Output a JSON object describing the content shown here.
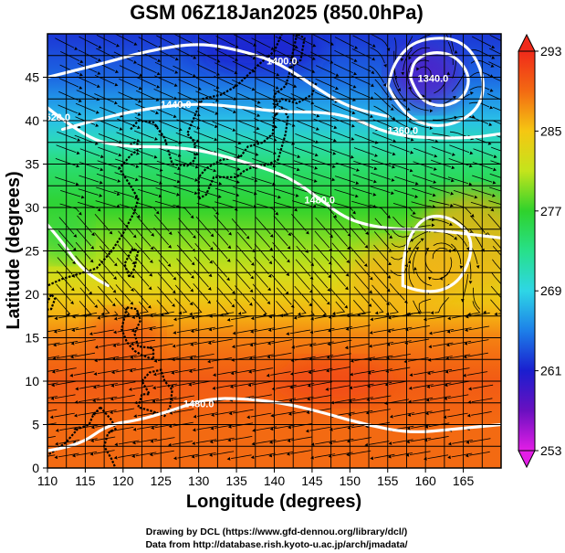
{
  "chart_data": {
    "type": "heatmap",
    "title": "GSM 06Z18Jan2025 (850.0hPa)",
    "xlabel": "Longitude (degrees)",
    "ylabel": "Latitude  (degrees)",
    "xlim": [
      110,
      170
    ],
    "ylim": [
      0,
      50
    ],
    "x_ticks": [
      "110",
      "115",
      "120",
      "125",
      "130",
      "135",
      "140",
      "145",
      "150",
      "155",
      "160",
      "165"
    ],
    "y_ticks": [
      "0",
      "5",
      "10",
      "15",
      "20",
      "25",
      "30",
      "35",
      "40",
      "45"
    ],
    "grid": true,
    "colorbar": {
      "min": 253,
      "max": 293,
      "labels": [
        "293",
        "285",
        "277",
        "269",
        "261",
        "253"
      ],
      "stops": [
        {
          "v": 253,
          "c": "#e31ee6"
        },
        {
          "v": 257,
          "c": "#6a10c0"
        },
        {
          "v": 261,
          "c": "#1a1ecf"
        },
        {
          "v": 265,
          "c": "#1d7fe8"
        },
        {
          "v": 269,
          "c": "#2ed6e6"
        },
        {
          "v": 273,
          "c": "#27e08a"
        },
        {
          "v": 277,
          "c": "#2fd22c"
        },
        {
          "v": 281,
          "c": "#c4e41c"
        },
        {
          "v": 285,
          "c": "#f5c712"
        },
        {
          "v": 289,
          "c": "#f36a12"
        },
        {
          "v": 293,
          "c": "#f02a1a"
        }
      ]
    },
    "temperature_field_lat_profile": [
      {
        "lat": 50,
        "t": 262
      },
      {
        "lat": 45,
        "t": 264
      },
      {
        "lat": 40,
        "t": 268
      },
      {
        "lat": 35,
        "t": 274
      },
      {
        "lat": 30,
        "t": 277
      },
      {
        "lat": 25,
        "t": 280
      },
      {
        "lat": 20,
        "t": 284
      },
      {
        "lat": 15,
        "t": 288
      },
      {
        "lat": 10,
        "t": 290
      },
      {
        "lat": 5,
        "t": 289
      },
      {
        "lat": 0,
        "t": 289
      }
    ],
    "contour_labels": [
      {
        "text": "1400.0",
        "lon": 141,
        "lat": 46.5
      },
      {
        "text": "1440.0",
        "lon": 127,
        "lat": 41.5
      },
      {
        "text": "1480.0",
        "lon": 146,
        "lat": 30.5
      },
      {
        "text": "1360.0",
        "lon": 157,
        "lat": 38.5
      },
      {
        "text": "1340.0",
        "lon": 161,
        "lat": 44.5
      },
      {
        "text": "1520.0",
        "lon": 111,
        "lat": 40
      },
      {
        "text": "1480.0",
        "lon": 130,
        "lat": 7
      }
    ],
    "contours": [
      {
        "lonlat": [
          [
            110,
            45
          ],
          [
            117,
            46.5
          ],
          [
            123,
            48
          ],
          [
            130,
            49
          ],
          [
            136,
            48
          ],
          [
            141,
            46.5
          ],
          [
            146,
            43.5
          ],
          [
            150,
            41.5
          ],
          [
            155,
            40.5
          ]
        ]
      },
      {
        "lonlat": [
          [
            112,
            39
          ],
          [
            118,
            40.5
          ],
          [
            124,
            41.5
          ],
          [
            130,
            42
          ],
          [
            136,
            41.5
          ],
          [
            141,
            41
          ],
          [
            146,
            41
          ],
          [
            150,
            40.5
          ],
          [
            155,
            38.5
          ],
          [
            160,
            38
          ],
          [
            166,
            38
          ],
          [
            170,
            38.5
          ]
        ]
      },
      {
        "lonlat": [
          [
            110,
            41.5
          ],
          [
            115,
            38
          ],
          [
            120,
            37
          ],
          [
            126,
            37
          ],
          [
            131,
            36.5
          ],
          [
            137,
            35
          ],
          [
            142,
            33.5
          ],
          [
            146,
            31
          ],
          [
            149,
            29
          ],
          [
            152,
            28
          ],
          [
            156,
            27.5
          ],
          [
            160,
            27.5
          ],
          [
            165,
            27
          ],
          [
            170,
            26.5
          ]
        ]
      },
      {
        "lonlat": [
          [
            110,
            28
          ],
          [
            112,
            26
          ],
          [
            114,
            23.5
          ],
          [
            116,
            22
          ],
          [
            118,
            21
          ]
        ]
      },
      {
        "lonlat": [
          [
            110,
            2
          ],
          [
            114,
            2.5
          ],
          [
            118,
            5
          ],
          [
            122,
            5.5
          ],
          [
            126,
            6.5
          ],
          [
            131,
            8
          ],
          [
            136,
            8
          ],
          [
            141,
            7.5
          ],
          [
            146,
            6.5
          ],
          [
            152,
            5
          ],
          [
            158,
            4
          ],
          [
            164,
            4.5
          ],
          [
            170,
            5
          ]
        ]
      },
      {
        "lonlat": [
          [
            157,
            21
          ],
          [
            160,
            20
          ],
          [
            164,
            21
          ],
          [
            166,
            24
          ],
          [
            166,
            27
          ],
          [
            163,
            29
          ],
          [
            160,
            29
          ],
          [
            158,
            27
          ],
          [
            157,
            24
          ],
          [
            157,
            21
          ]
        ]
      },
      {
        "lonlat": [
          [
            158,
            45
          ],
          [
            159,
            42.5
          ],
          [
            162,
            41.5
          ],
          [
            165,
            42.5
          ],
          [
            166,
            45
          ],
          [
            164,
            47.5
          ],
          [
            161,
            48
          ],
          [
            158.5,
            47
          ],
          [
            158,
            45
          ]
        ]
      },
      {
        "lonlat": [
          [
            155,
            44
          ],
          [
            157,
            40.5
          ],
          [
            162,
            39
          ],
          [
            167,
            41
          ],
          [
            168,
            45
          ],
          [
            165,
            49.5
          ],
          [
            159,
            49.5
          ],
          [
            156,
            47
          ],
          [
            155,
            44
          ]
        ]
      }
    ],
    "coastline": [
      {
        "lonlat": [
          [
            121,
            39
          ],
          [
            122,
            40
          ],
          [
            124,
            39.8
          ],
          [
            125.5,
            38
          ],
          [
            126.5,
            35
          ],
          [
            128.5,
            34.8
          ],
          [
            129.5,
            35.5
          ],
          [
            129.5,
            37.5
          ],
          [
            128.5,
            38.5
          ],
          [
            129.7,
            41
          ],
          [
            130.5,
            42.5
          ],
          [
            133,
            43
          ],
          [
            135,
            44
          ],
          [
            138,
            46.5
          ],
          [
            140,
            48
          ],
          [
            141,
            50
          ]
        ]
      },
      {
        "lonlat": [
          [
            120.5,
            37
          ],
          [
            121.5,
            37.5
          ],
          [
            122.5,
            37
          ],
          [
            121,
            36
          ],
          [
            120,
            35
          ],
          [
            119.5,
            34.5
          ],
          [
            121,
            32.5
          ],
          [
            122,
            31
          ],
          [
            121.5,
            29.5
          ],
          [
            120,
            27
          ],
          [
            118.5,
            25
          ],
          [
            116.5,
            23
          ],
          [
            114,
            22.3
          ],
          [
            112,
            21.8
          ],
          [
            110,
            21
          ]
        ]
      },
      {
        "lonlat": [
          [
            130,
            31
          ],
          [
            131,
            31.5
          ],
          [
            132,
            33.5
          ],
          [
            133.5,
            33.5
          ],
          [
            135,
            33.5
          ],
          [
            136,
            34.2
          ],
          [
            137,
            34.6
          ],
          [
            139,
            34.9
          ],
          [
            140.5,
            35.5
          ],
          [
            141,
            37
          ],
          [
            141.5,
            38.5
          ],
          [
            141.8,
            40.5
          ],
          [
            141,
            41.5
          ],
          [
            140,
            40.5
          ],
          [
            139.8,
            38.5
          ],
          [
            138.5,
            37.5
          ],
          [
            136.5,
            37
          ],
          [
            135.5,
            35.8
          ],
          [
            133,
            35.5
          ],
          [
            131,
            34.5
          ],
          [
            130,
            33.5
          ],
          [
            130,
            31
          ]
        ]
      },
      {
        "lonlat": [
          [
            140,
            41.5
          ],
          [
            141,
            42.5
          ],
          [
            143,
            42
          ],
          [
            145,
            43
          ],
          [
            145.5,
            44.2
          ],
          [
            142,
            45.5
          ],
          [
            141.5,
            44
          ],
          [
            140,
            43
          ],
          [
            140,
            41.5
          ]
        ]
      },
      {
        "lonlat": [
          [
            142,
            46
          ],
          [
            142.5,
            48
          ],
          [
            143,
            50
          ],
          [
            144,
            49.5
          ],
          [
            143.5,
            47
          ],
          [
            142,
            46
          ]
        ]
      },
      {
        "lonlat": [
          [
            120.8,
            22
          ],
          [
            120.2,
            23.5
          ],
          [
            121.2,
            25.2
          ],
          [
            122,
            25
          ],
          [
            121.5,
            23
          ],
          [
            120.8,
            22
          ]
        ]
      },
      {
        "lonlat": [
          [
            120.5,
            18.5
          ],
          [
            121.8,
            18.3
          ],
          [
            122.3,
            17
          ],
          [
            121.5,
            15.5
          ],
          [
            122,
            14
          ],
          [
            124,
            13.8
          ],
          [
            124,
            12.5
          ],
          [
            122.5,
            13
          ],
          [
            121.5,
            13.5
          ],
          [
            120.5,
            14.5
          ],
          [
            119.8,
            16
          ],
          [
            120.5,
            18.5
          ]
        ]
      },
      {
        "lonlat": [
          [
            122.5,
            10
          ],
          [
            123.5,
            11
          ],
          [
            125,
            11.3
          ],
          [
            125.5,
            10
          ],
          [
            126.5,
            9
          ],
          [
            126.2,
            7
          ],
          [
            125.5,
            6
          ],
          [
            124,
            6.5
          ],
          [
            122,
            7
          ],
          [
            122.5,
            8.5
          ],
          [
            123.5,
            8.5
          ],
          [
            122.5,
            10
          ]
        ]
      },
      {
        "lonlat": [
          [
            117,
            7
          ],
          [
            116,
            6
          ],
          [
            115.5,
            5
          ],
          [
            114,
            4.5
          ],
          [
            112.5,
            3
          ],
          [
            111,
            2
          ],
          [
            110,
            1.5
          ]
        ]
      },
      {
        "lonlat": [
          [
            117,
            7
          ],
          [
            118.5,
            5.5
          ],
          [
            119,
            4.5
          ],
          [
            118,
            4
          ],
          [
            117.5,
            2.5
          ],
          [
            118.5,
            1
          ],
          [
            119,
            0
          ]
        ]
      },
      {
        "lonlat": [
          [
            109.5,
            18.2
          ],
          [
            110.5,
            20
          ],
          [
            111,
            19.5
          ],
          [
            110.5,
            18.3
          ],
          [
            109.5,
            18.2
          ]
        ]
      }
    ],
    "wind_streamlines": true
  },
  "credits": {
    "drawing": "Drawing by DCL (https://www.gfd-dennou.org/library/dcl/)",
    "data": "Data from http://database.rish.kyoto-u.ac.jp/arch/jmadata/"
  }
}
